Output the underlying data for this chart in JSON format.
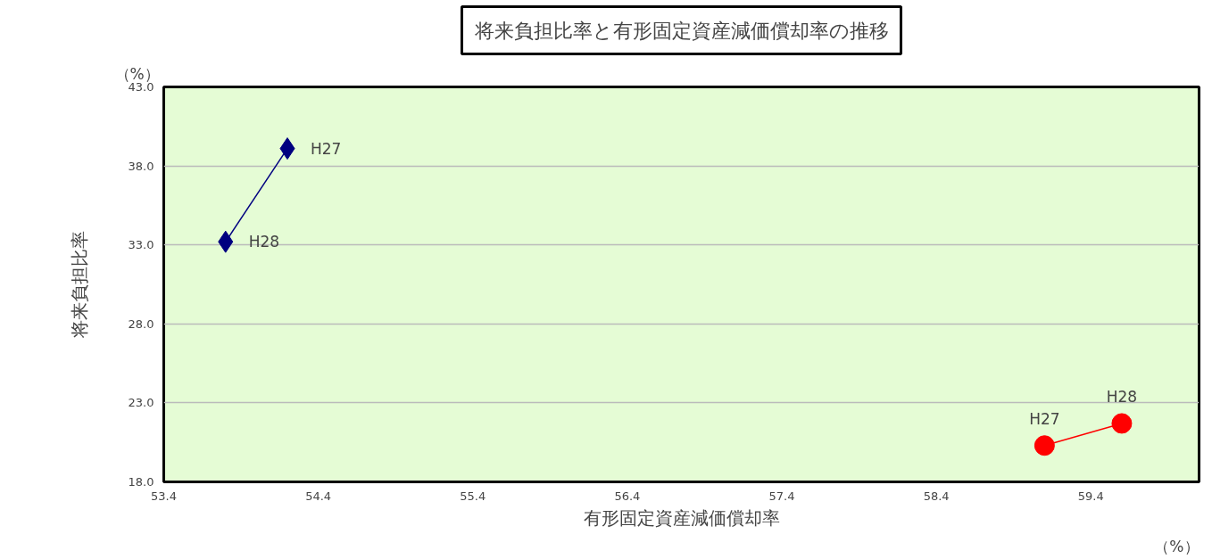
{
  "chart_data": {
    "type": "line",
    "title": "将来負担比率と有形固定資産減価償却率の推移",
    "xlabel": "有形固定資産減価償却率",
    "ylabel": "将来負担比率",
    "series": [
      {
        "color": "#000080",
        "marker": "diamond",
        "x": [
          54.2,
          53.8
        ],
        "values": [
          39.1,
          33.2
        ]
      },
      {
        "color": "#ff0000",
        "marker": "circle",
        "x": [
          59.1,
          59.6
        ],
        "values": [
          20.3,
          21.7
        ]
      }
    ],
    "xlim": [
      53.4,
      60.1
    ],
    "xticks": [
      53.4,
      54.4,
      55.4,
      56.4,
      57.4,
      58.4,
      59.4
    ],
    "ylim": [
      18,
      43
    ],
    "yticks": [
      {
        "value": 18,
        "label": "18.0"
      },
      {
        "value": 23,
        "label": "23.0"
      },
      {
        "value": 28,
        "label": "28.0"
      },
      {
        "value": 33,
        "label": "33.0"
      },
      {
        "value": 38,
        "label": "38.0"
      },
      {
        "value": 43,
        "label": "43.0"
      }
    ],
    "grid": "y",
    "line_style": "solid",
    "annotations": [
      {
        "text": "H27",
        "x": 54.2,
        "y": 39.1
      },
      {
        "text": "H28",
        "x": 53.8,
        "y": 33.2
      },
      {
        "text": "H27",
        "x": 59.1,
        "y": 20.3
      },
      {
        "text": "H28",
        "x": 59.6,
        "y": 21.7
      },
      "（%）",
      "（%）"
    ]
  }
}
